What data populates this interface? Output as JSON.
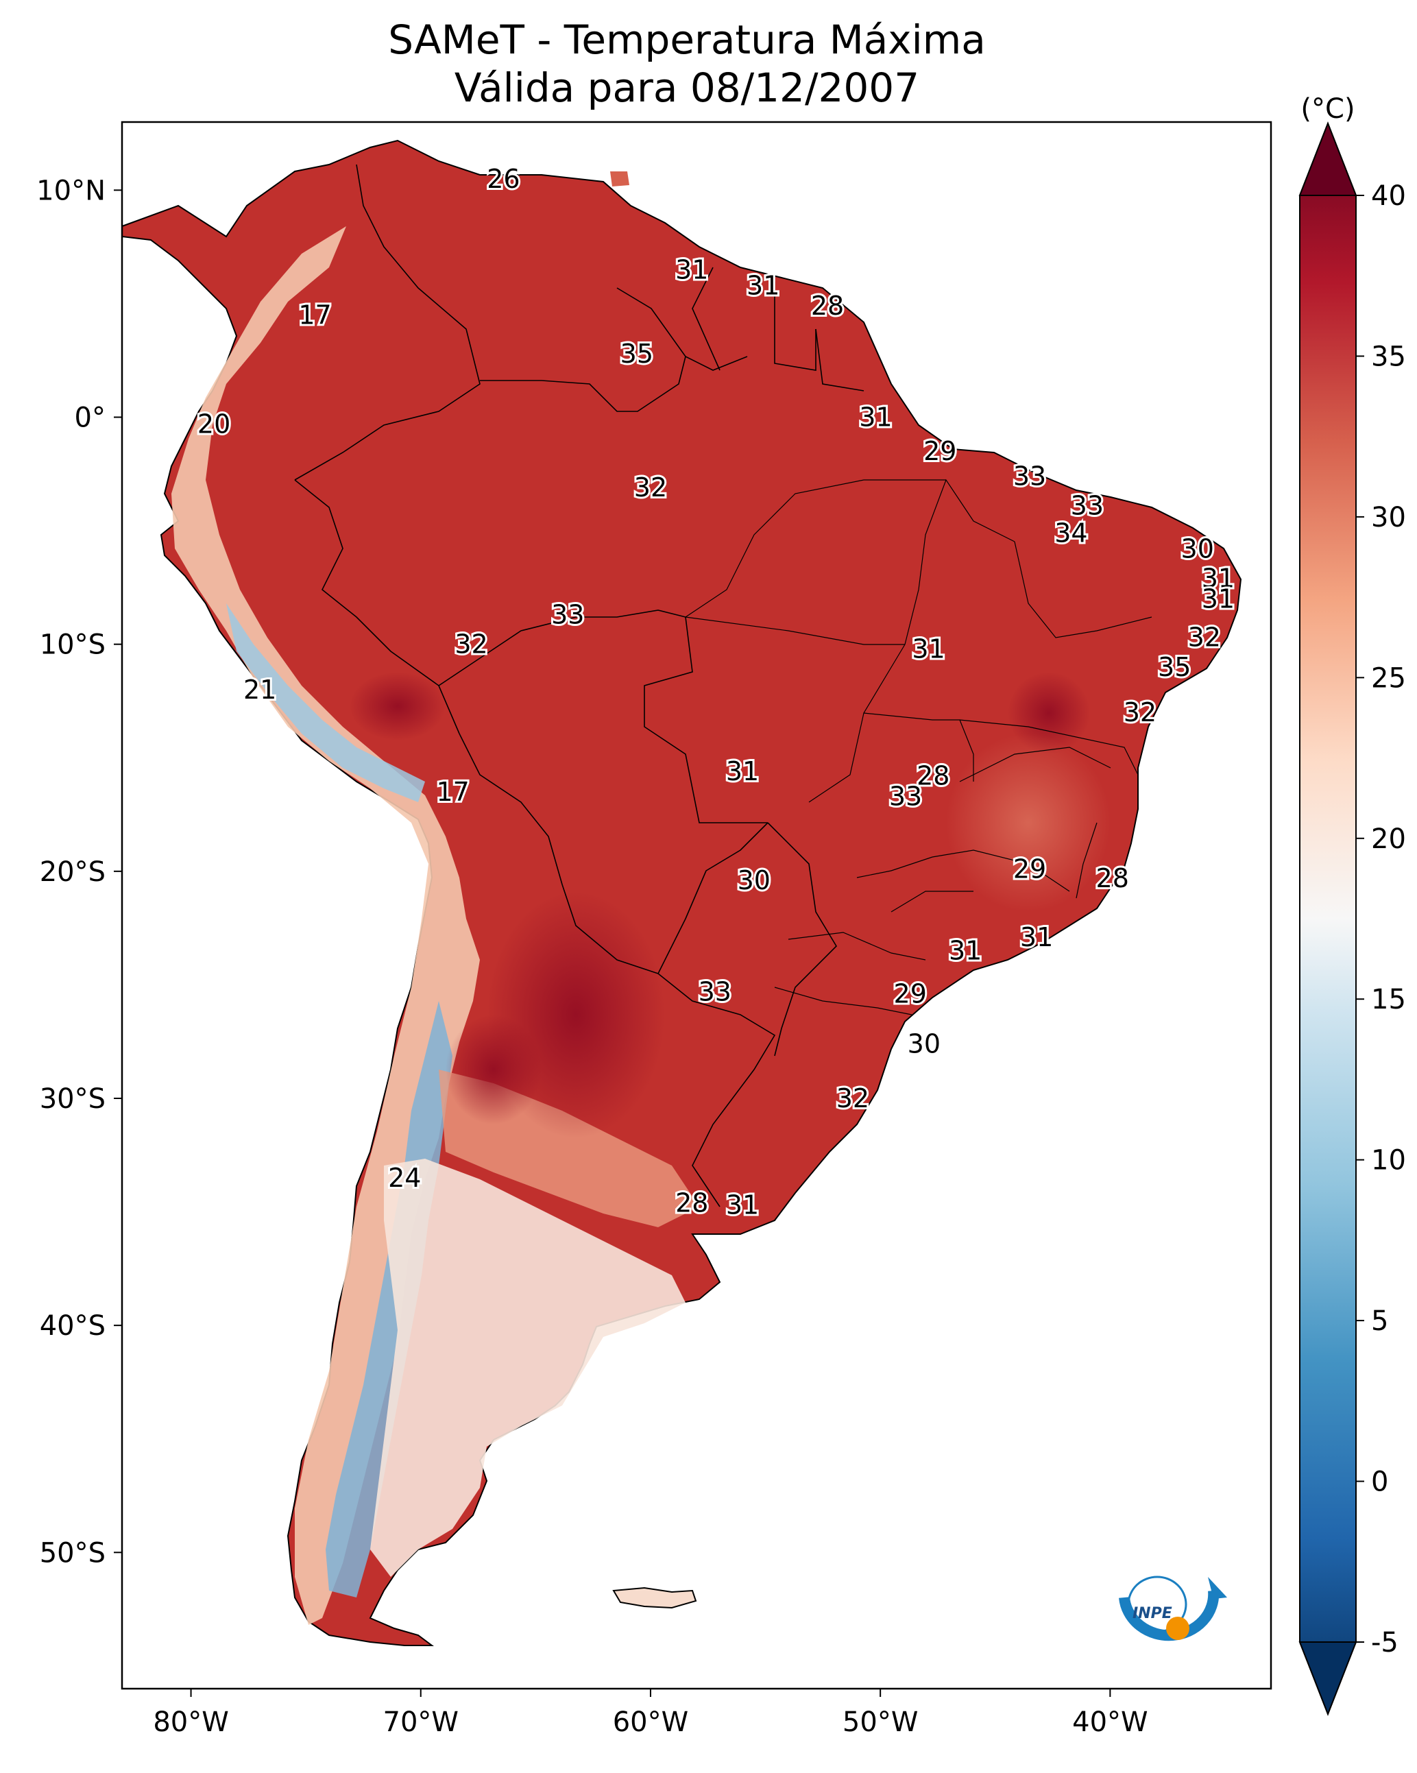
{
  "title": {
    "line1": "SAMeT - Temperatura Máxima",
    "line2": "Válida para 08/12/2007"
  },
  "map": {
    "lon_range": [
      -83,
      -33
    ],
    "lat_range": [
      -56,
      13
    ],
    "lat_ticks": [
      {
        "value": 10,
        "label": "10°N"
      },
      {
        "value": 0,
        "label": "0°"
      },
      {
        "value": -10,
        "label": "10°S"
      },
      {
        "value": -20,
        "label": "20°S"
      },
      {
        "value": -30,
        "label": "30°S"
      },
      {
        "value": -40,
        "label": "40°S"
      },
      {
        "value": -50,
        "label": "50°S"
      }
    ],
    "lon_ticks": [
      {
        "value": -80,
        "label": "80°W"
      },
      {
        "value": -70,
        "label": "70°W"
      },
      {
        "value": -60,
        "label": "60°W"
      },
      {
        "value": -50,
        "label": "50°W"
      },
      {
        "value": -40,
        "label": "40°W"
      }
    ],
    "station_values": [
      {
        "lon": -66.4,
        "lat": 10.5,
        "text": "26"
      },
      {
        "lon": -74.6,
        "lat": 4.5,
        "text": "17"
      },
      {
        "lon": -58.2,
        "lat": 6.5,
        "text": "31"
      },
      {
        "lon": -55.1,
        "lat": 5.8,
        "text": "31"
      },
      {
        "lon": -52.3,
        "lat": 4.9,
        "text": "28"
      },
      {
        "lon": -60.6,
        "lat": 2.8,
        "text": "35"
      },
      {
        "lon": -79.0,
        "lat": -0.3,
        "text": "20"
      },
      {
        "lon": -50.2,
        "lat": 0.0,
        "text": "31"
      },
      {
        "lon": -47.4,
        "lat": -1.5,
        "text": "29"
      },
      {
        "lon": -60.0,
        "lat": -3.1,
        "text": "32"
      },
      {
        "lon": -43.5,
        "lat": -2.6,
        "text": "33"
      },
      {
        "lon": -41.0,
        "lat": -3.9,
        "text": "33"
      },
      {
        "lon": -41.7,
        "lat": -5.1,
        "text": "34"
      },
      {
        "lon": -36.2,
        "lat": -5.8,
        "text": "30"
      },
      {
        "lon": -35.3,
        "lat": -7.1,
        "text": "31"
      },
      {
        "lon": -35.3,
        "lat": -8.0,
        "text": "31"
      },
      {
        "lon": -63.6,
        "lat": -8.7,
        "text": "33"
      },
      {
        "lon": -67.8,
        "lat": -10.0,
        "text": "32"
      },
      {
        "lon": -35.9,
        "lat": -9.7,
        "text": "32"
      },
      {
        "lon": -47.9,
        "lat": -10.2,
        "text": "31"
      },
      {
        "lon": -37.2,
        "lat": -11.0,
        "text": "35"
      },
      {
        "lon": -77.0,
        "lat": -12.0,
        "text": "21"
      },
      {
        "lon": -38.7,
        "lat": -13.0,
        "text": "32"
      },
      {
        "lon": -56.0,
        "lat": -15.6,
        "text": "31"
      },
      {
        "lon": -47.7,
        "lat": -15.8,
        "text": "28"
      },
      {
        "lon": -48.9,
        "lat": -16.7,
        "text": "33"
      },
      {
        "lon": -68.6,
        "lat": -16.5,
        "text": "17"
      },
      {
        "lon": -43.5,
        "lat": -19.9,
        "text": "29"
      },
      {
        "lon": -39.9,
        "lat": -20.3,
        "text": "28"
      },
      {
        "lon": -55.5,
        "lat": -20.4,
        "text": "30"
      },
      {
        "lon": -43.2,
        "lat": -22.9,
        "text": "31"
      },
      {
        "lon": -46.3,
        "lat": -23.5,
        "text": "31"
      },
      {
        "lon": -57.2,
        "lat": -25.3,
        "text": "33"
      },
      {
        "lon": -48.7,
        "lat": -25.4,
        "text": "29"
      },
      {
        "lon": -48.1,
        "lat": -27.6,
        "text": "30"
      },
      {
        "lon": -51.2,
        "lat": -30.0,
        "text": "32"
      },
      {
        "lon": -70.7,
        "lat": -33.5,
        "text": "24"
      },
      {
        "lon": -58.2,
        "lat": -34.6,
        "text": "28"
      },
      {
        "lon": -56.0,
        "lat": -34.7,
        "text": "31"
      }
    ]
  },
  "colorbar": {
    "unit": "(°C)",
    "range": [
      -5,
      40
    ],
    "ticks": [
      "-5",
      "0",
      "5",
      "10",
      "15",
      "20",
      "25",
      "30",
      "35",
      "40"
    ],
    "colors": [
      "#053061",
      "#2166ac",
      "#4393c3",
      "#92c5de",
      "#d1e5f0",
      "#f7f7f7",
      "#fddbc7",
      "#f4a582",
      "#d6604d",
      "#b2182b",
      "#67001f"
    ]
  },
  "logo": {
    "text": "INPE",
    "colors": {
      "ring": "#1a7fc1",
      "dot": "#f39200"
    }
  }
}
